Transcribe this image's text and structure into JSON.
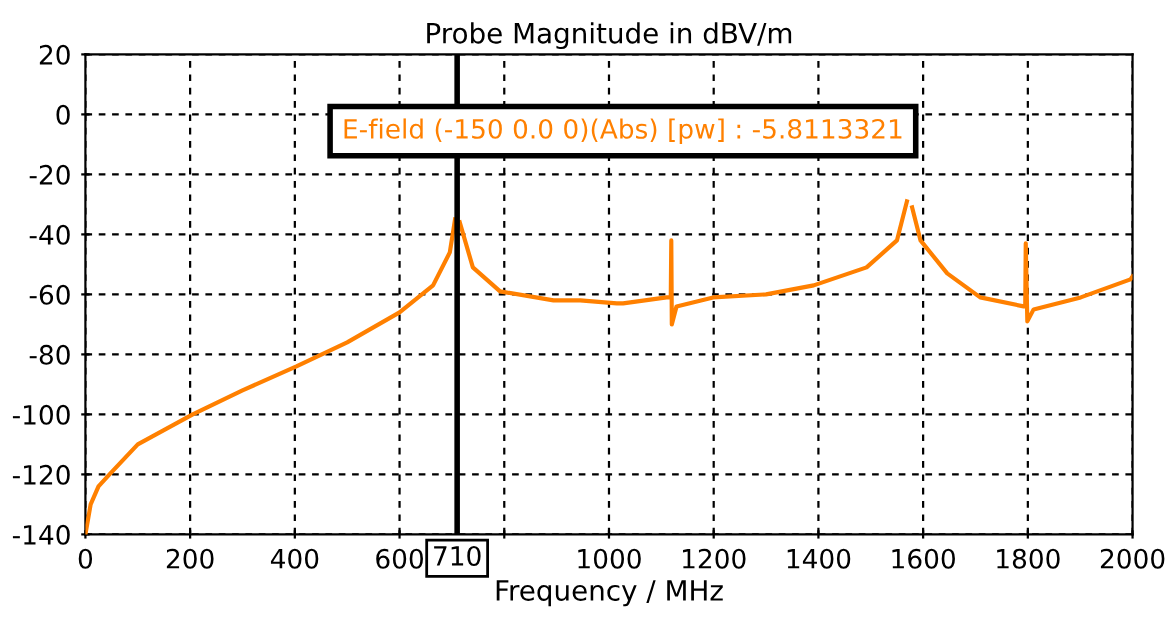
{
  "chart_data": {
    "type": "line",
    "title": "Probe Magnitude in dBV/m",
    "xlabel": "Frequency / MHz",
    "series": [
      {
        "color": "#ff8000",
        "x": [
          0,
          10,
          25,
          46,
          100,
          205,
          300,
          403,
          500,
          600,
          664,
          696,
          706,
          712,
          715,
          740,
          792,
          894,
          945,
          1015,
          1027,
          1110,
          1118,
          1119,
          1120,
          1129,
          1199,
          1300,
          1391,
          1492,
          1550,
          1569,
          1574,
          1579,
          1595,
          1646,
          1709,
          1792,
          1795,
          1796,
          1799,
          1811,
          1901,
          1996,
          2000
        ],
        "values": [
          -140,
          -130,
          -124,
          -120,
          -110,
          -100,
          -92,
          -84,
          -76,
          -66,
          -57,
          -46,
          -35,
          null,
          -36,
          -51,
          -59,
          -62,
          -62,
          -63,
          -63,
          -61,
          -61,
          -42,
          -70,
          -64,
          -61,
          -60,
          -57,
          -51,
          -42,
          -29,
          null,
          -31,
          -42,
          -53,
          -61,
          -64,
          -64,
          -43,
          -69,
          -65,
          -61,
          -55,
          -54
        ]
      }
    ],
    "xlim": [
      0,
      2000
    ],
    "ylim": [
      -140,
      20
    ],
    "xticks": [
      0,
      200,
      400,
      600,
      {
        "value": 800,
        "label": null
      },
      1000,
      1200,
      1400,
      1600,
      1800,
      2000
    ],
    "yticks": [
      -140,
      -120,
      -100,
      -80,
      -60,
      -40,
      -20,
      0,
      20
    ],
    "grid": true,
    "line_style": "solid",
    "marker": "none",
    "ref_lines": [
      {
        "axis": "x",
        "value": 710,
        "label": "710",
        "color": "#000000",
        "line_style": "solid"
      }
    ],
    "annotations": [
      "E-field (-150 0.0 0)(Abs) [pw] : -5.8113321"
    ]
  }
}
